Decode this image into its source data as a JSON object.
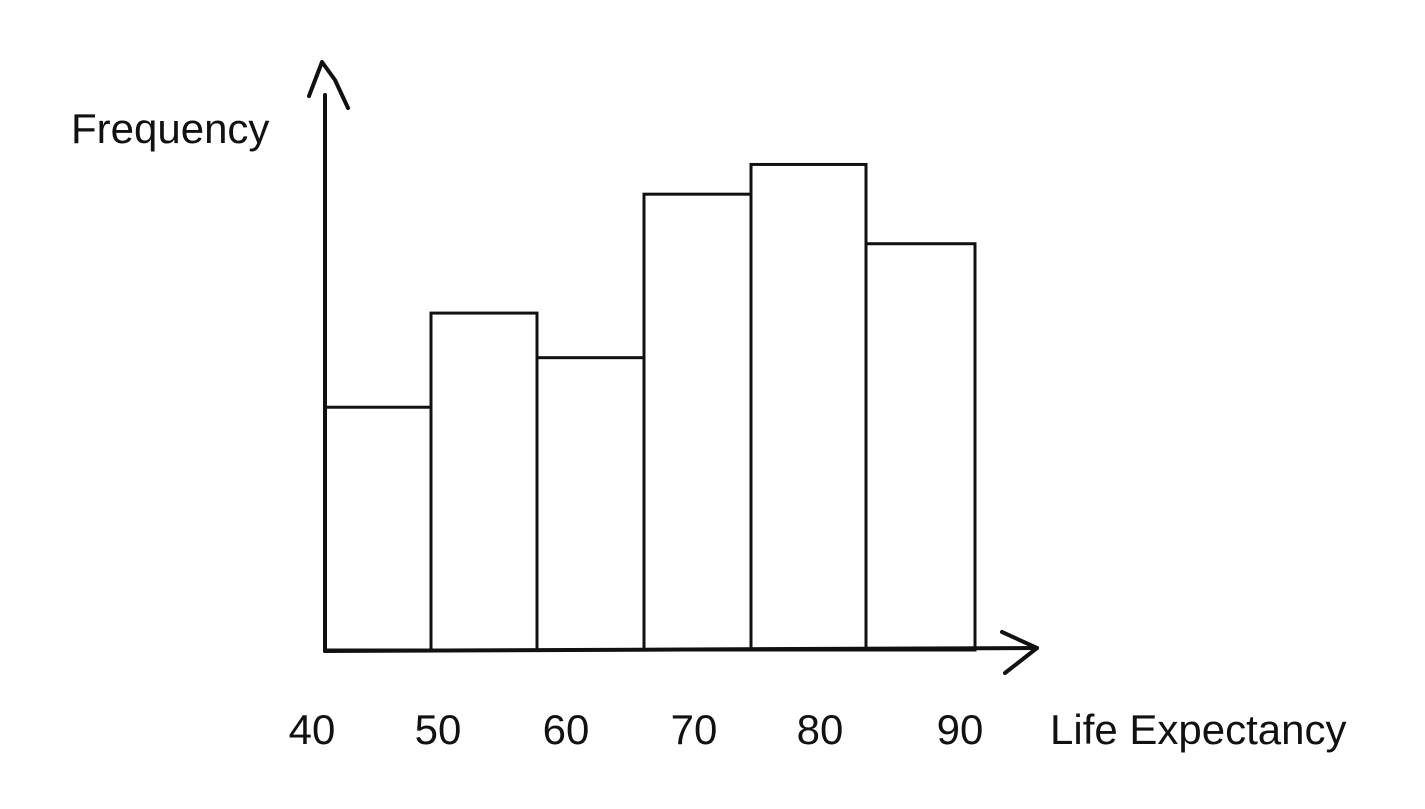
{
  "chart_data": {
    "type": "bar",
    "title": "",
    "xlabel": "Life Expectancy",
    "ylabel": "Frequency",
    "categories": [
      "40",
      "50",
      "60",
      "70",
      "80",
      "90"
    ],
    "values": [
      4.9,
      6.8,
      5.9,
      9.2,
      9.8,
      8.2
    ],
    "ylim": [
      0,
      11
    ],
    "grid": false,
    "legend": "none",
    "colors": {
      "stroke": "#111111",
      "fill": "#ffffff"
    }
  }
}
